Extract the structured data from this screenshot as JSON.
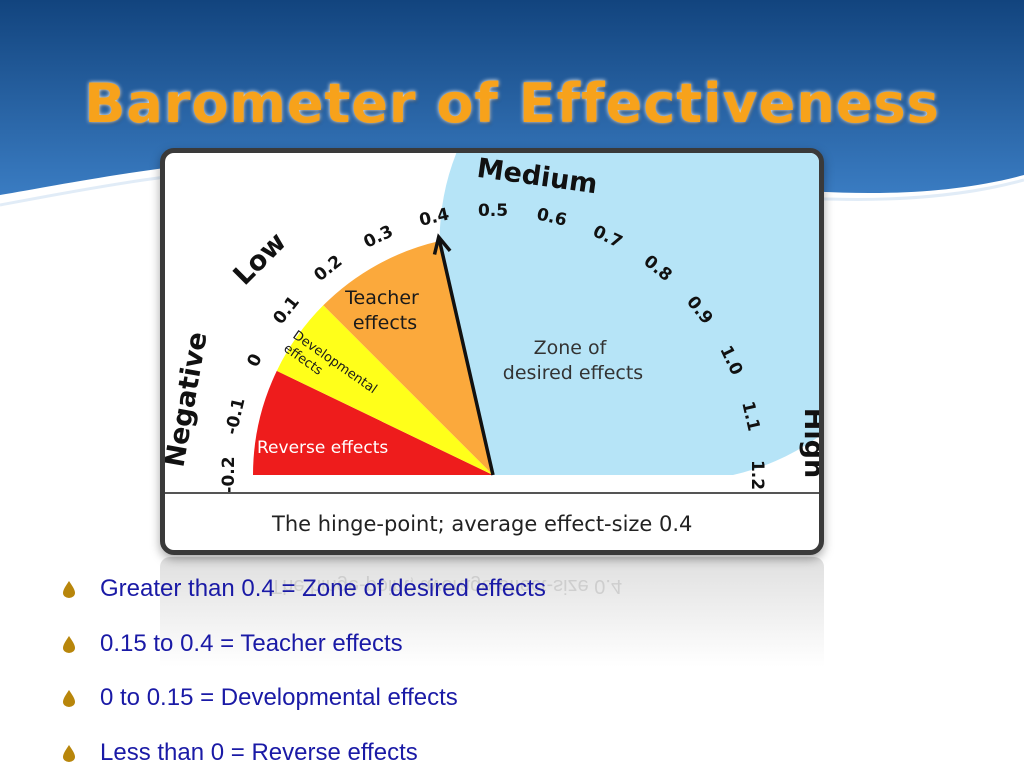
{
  "title": "Barometer of Effectiveness",
  "diagram": {
    "scale_labels": [
      "-0.2",
      "-0.1",
      "0",
      "0.1",
      "0.2",
      "0.3",
      "0.4",
      "0.5",
      "0.6",
      "0.7",
      "0.8",
      "0.9",
      "1.0",
      "1.1",
      "1.2"
    ],
    "category_labels": {
      "negative": "Negative",
      "low": "Low",
      "medium": "Medium",
      "high": "High"
    },
    "zones": [
      {
        "label": "Reverse effects",
        "from": -0.2,
        "to": 0,
        "color": "#ee1c1c"
      },
      {
        "label": "Developmental effects",
        "from": 0,
        "to": 0.15,
        "color": "#ffff1a"
      },
      {
        "label": "Teacher effects",
        "from": 0.15,
        "to": 0.4,
        "color": "#fba93c"
      },
      {
        "label": "Zone of desired effects",
        "from": 0.4,
        "to": 1.2,
        "color": "#b6e4f7"
      }
    ],
    "zone_text": {
      "reverse": "Reverse effects",
      "developmental_line1": "Developmental",
      "developmental_line2": "effects",
      "teacher_line1": "Teacher",
      "teacher_line2": "effects",
      "desired_line1": "Zone of",
      "desired_line2": "desired effects"
    },
    "needle_value": 0.4,
    "caption": "The hinge-point; average effect-size 0.4"
  },
  "bullets": [
    "Greater than 0.4 = Zone of desired effects",
    "0.15 to 0.4 = Teacher effects",
    "0 to 0.15 = Developmental effects",
    "Less than 0 = Reverse effects"
  ],
  "colors": {
    "title": "#f7a21b",
    "bullet_text": "#1a1aa6",
    "bullet_icon": "#b8860b",
    "background_blue": "#2a66ad"
  }
}
